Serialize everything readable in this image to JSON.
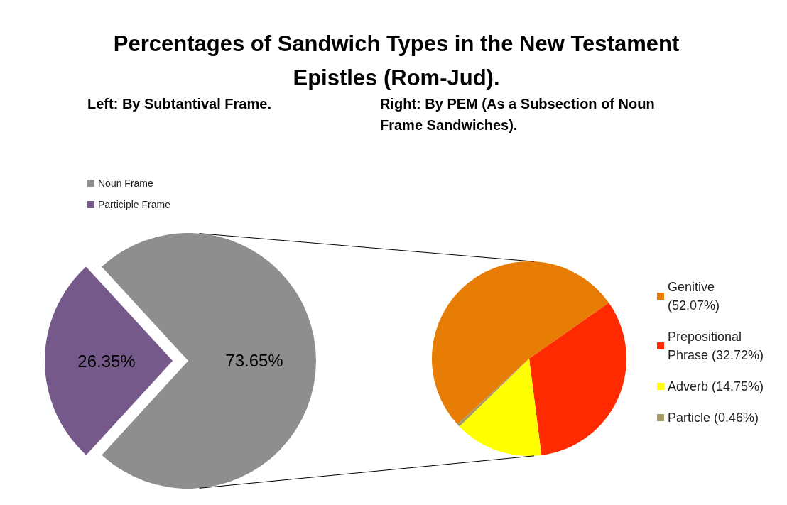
{
  "chart_data": [
    {
      "type": "pie",
      "title": "Percentages of Sandwich Types in the New Testament Epistles (Rom-Jud).",
      "subtitle": "Left: By Subtantival Frame.",
      "categories": [
        "Noun Frame",
        "Participle Frame"
      ],
      "values": [
        73.65,
        26.35
      ],
      "colors": [
        "#8e8e8e",
        "#74598a"
      ],
      "value_labels": [
        "73.65%",
        "26.35%"
      ],
      "legend": "top left"
    },
    {
      "type": "pie",
      "subtitle": "Right: By PEM (As a Subsection of Noun Frame Sandwiches).",
      "categories": [
        "Genitive (52.07%)",
        "Prepositional Phrase (32.72%)",
        "Adverb (14.75%)",
        "Particle (0.46%)"
      ],
      "values": [
        52.07,
        32.72,
        14.75,
        0.46
      ],
      "colors": [
        "#e87d05",
        "#ff2a00",
        "#ffff00",
        "#a59a63"
      ],
      "legend": "right"
    }
  ]
}
